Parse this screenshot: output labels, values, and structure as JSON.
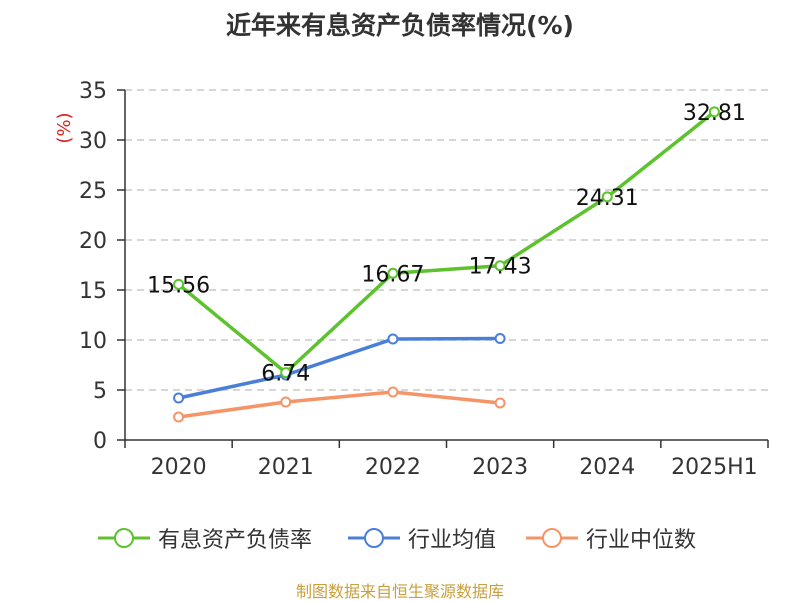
{
  "chart_data": {
    "type": "line",
    "title": "近年来有息资产负债率情况(%)",
    "ylabel": "(%)",
    "xlabel": "",
    "categories": [
      "2020",
      "2021",
      "2022",
      "2023",
      "2024",
      "2025H1"
    ],
    "ylim": [
      0,
      35
    ],
    "yticks": [
      0,
      5,
      10,
      15,
      20,
      25,
      30,
      35
    ],
    "grid": true,
    "legend_position": "bottom",
    "series": [
      {
        "name": "有息资产负债率",
        "color": "#5cc22d",
        "values": [
          15.56,
          6.74,
          16.67,
          17.43,
          24.31,
          32.81
        ],
        "labels": [
          "15.56",
          "6.74",
          "16.67",
          "17.43",
          "24.31",
          "32.81"
        ]
      },
      {
        "name": "行业均值",
        "color": "#4a7fd9",
        "values": [
          4.2,
          6.5,
          10.1,
          10.15,
          null,
          null
        ]
      },
      {
        "name": "行业中位数",
        "color": "#f59466",
        "values": [
          2.3,
          3.8,
          4.8,
          3.7,
          null,
          null
        ]
      }
    ]
  },
  "footer": {
    "source": "制图数据来自恒生聚源数据库"
  }
}
